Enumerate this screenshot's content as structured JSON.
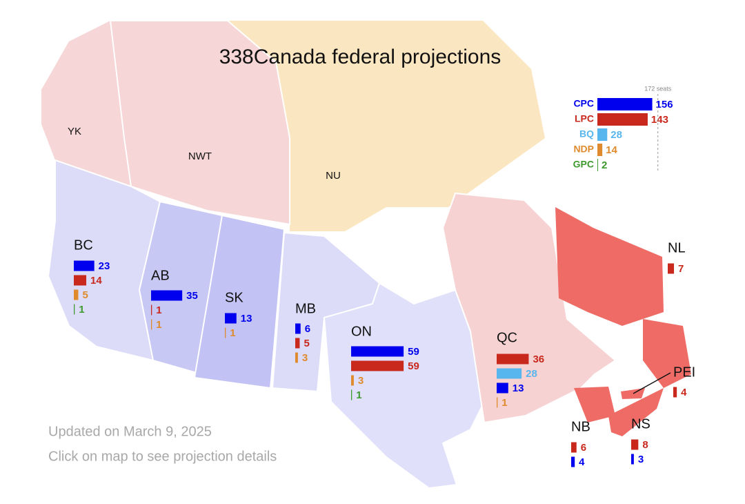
{
  "title": "338Canada federal projections",
  "national": {
    "threshold": 172,
    "threshold_label": "172 seats",
    "parties": [
      {
        "name": "CPC",
        "color": "#0000ee",
        "seats": 156
      },
      {
        "name": "LPC",
        "color": "#c9281d",
        "seats": 143
      },
      {
        "name": "BQ",
        "color": "#58b6ee",
        "seats": 28
      },
      {
        "name": "NDP",
        "color": "#df8a2c",
        "seats": 14
      },
      {
        "name": "GPC",
        "color": "#3d9a2c",
        "seats": 2
      }
    ]
  },
  "territories": [
    {
      "name": "YK"
    },
    {
      "name": "NWT"
    },
    {
      "name": "NU"
    }
  ],
  "regions": [
    {
      "name": "BC",
      "bars": [
        {
          "party": "CPC",
          "seats": 23
        },
        {
          "party": "LPC",
          "seats": 14
        },
        {
          "party": "NDP",
          "seats": 5
        },
        {
          "party": "GPC",
          "seats": 1
        }
      ]
    },
    {
      "name": "AB",
      "bars": [
        {
          "party": "CPC",
          "seats": 35
        },
        {
          "party": "LPC",
          "seats": 1
        },
        {
          "party": "NDP",
          "seats": 1
        }
      ]
    },
    {
      "name": "SK",
      "bars": [
        {
          "party": "CPC",
          "seats": 13
        },
        {
          "party": "NDP",
          "seats": 1
        }
      ]
    },
    {
      "name": "MB",
      "bars": [
        {
          "party": "CPC",
          "seats": 6
        },
        {
          "party": "LPC",
          "seats": 5
        },
        {
          "party": "NDP",
          "seats": 3
        }
      ]
    },
    {
      "name": "ON",
      "bars": [
        {
          "party": "CPC",
          "seats": 59
        },
        {
          "party": "LPC",
          "seats": 59
        },
        {
          "party": "NDP",
          "seats": 3
        },
        {
          "party": "GPC",
          "seats": 1
        }
      ]
    },
    {
      "name": "QC",
      "bars": [
        {
          "party": "LPC",
          "seats": 36
        },
        {
          "party": "BQ",
          "seats": 28
        },
        {
          "party": "CPC",
          "seats": 13
        },
        {
          "party": "NDP",
          "seats": 1
        }
      ]
    },
    {
      "name": "NL",
      "bars": [
        {
          "party": "LPC",
          "seats": 7
        }
      ]
    },
    {
      "name": "PEI",
      "bars": [
        {
          "party": "LPC",
          "seats": 4
        }
      ]
    },
    {
      "name": "NB",
      "bars": [
        {
          "party": "LPC",
          "seats": 6
        },
        {
          "party": "CPC",
          "seats": 4
        }
      ]
    },
    {
      "name": "NS",
      "bars": [
        {
          "party": "LPC",
          "seats": 8
        },
        {
          "party": "CPC",
          "seats": 3
        }
      ]
    }
  ],
  "notes": [
    "Updated on March 9, 2025",
    "Click on map to see projection details"
  ]
}
